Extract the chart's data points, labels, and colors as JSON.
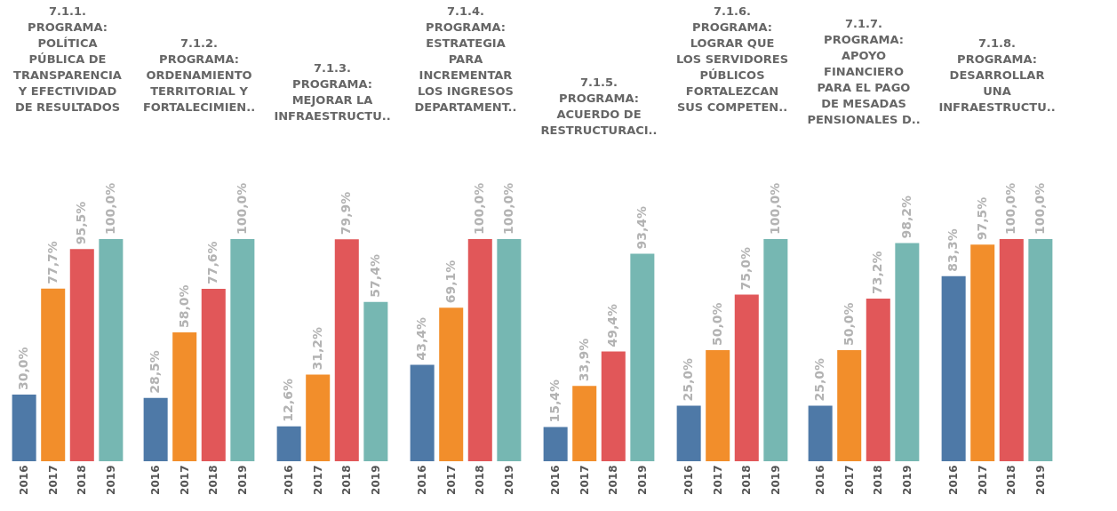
{
  "chart_data": [
    {
      "type": "bar",
      "title": "7.1.1.\nPROGRAMA:\nPOLÍTICA\nPÚBLICA DE\nTRANSPARENCIA\nY EFECTIVIDAD\nDE RESULTADOS",
      "categories": [
        "2016",
        "2017",
        "2018",
        "2019"
      ],
      "values": [
        30.0,
        77.7,
        95.5,
        100.0
      ],
      "value_labels": [
        "30,0%",
        "77,7%",
        "95,5%",
        "100,0%"
      ],
      "colors": [
        "#4e79a7",
        "#f28e2b",
        "#e15759",
        "#76b7b2"
      ],
      "tick_labels": "x",
      "grid": false
    },
    {
      "type": "bar",
      "title": "7.1.2.\nPROGRAMA:\nORDENAMIENTO\nTERRITORIAL Y\nFORTALECIMIEN..",
      "categories": [
        "2016",
        "2017",
        "2018",
        "2019"
      ],
      "values": [
        28.5,
        58.0,
        77.6,
        100.0
      ],
      "value_labels": [
        "28,5%",
        "58,0%",
        "77,6%",
        "100,0%"
      ],
      "colors": [
        "#4e79a7",
        "#f28e2b",
        "#e15759",
        "#76b7b2"
      ],
      "tick_labels": "x",
      "grid": false
    },
    {
      "type": "bar",
      "title": "7.1.3.\nPROGRAMA:\nMEJORAR LA\nINFRAESTRUCTU..",
      "categories": [
        "2016",
        "2017",
        "2018",
        "2019"
      ],
      "values": [
        12.6,
        31.2,
        79.9,
        57.4
      ],
      "value_labels": [
        "12,6%",
        "31,2%",
        "79,9%",
        "57,4%"
      ],
      "colors": [
        "#4e79a7",
        "#f28e2b",
        "#e15759",
        "#76b7b2"
      ],
      "tick_labels": "x",
      "grid": false
    },
    {
      "type": "bar",
      "title": "7.1.4.\nPROGRAMA:\nESTRATEGIA\nPARA\nINCREMENTAR\nLOS INGRESOS\nDEPARTAMENT..",
      "categories": [
        "2016",
        "2017",
        "2018",
        "2019"
      ],
      "values": [
        43.4,
        69.1,
        100.0,
        100.0
      ],
      "value_labels": [
        "43,4%",
        "69,1%",
        "100,0%",
        "100,0%"
      ],
      "colors": [
        "#4e79a7",
        "#f28e2b",
        "#e15759",
        "#76b7b2"
      ],
      "tick_labels": "x",
      "grid": false
    },
    {
      "type": "bar",
      "title": "7.1.5.\nPROGRAMA:\nACUERDO DE\nRESTRUCTURACI..",
      "categories": [
        "2016",
        "2017",
        "2018",
        "2019"
      ],
      "values": [
        15.4,
        33.9,
        49.4,
        93.4
      ],
      "value_labels": [
        "15,4%",
        "33,9%",
        "49,4%",
        "93,4%"
      ],
      "colors": [
        "#4e79a7",
        "#f28e2b",
        "#e15759",
        "#76b7b2"
      ],
      "tick_labels": "x",
      "grid": false
    },
    {
      "type": "bar",
      "title": "7.1.6.\nPROGRAMA:\nLOGRAR QUE\nLOS SERVIDORES\nPÚBLICOS\nFORTALEZCAN\nSUS COMPETEN..",
      "categories": [
        "2016",
        "2017",
        "2018",
        "2019"
      ],
      "values": [
        25.0,
        50.0,
        75.0,
        100.0
      ],
      "value_labels": [
        "25,0%",
        "50,0%",
        "75,0%",
        "100,0%"
      ],
      "colors": [
        "#4e79a7",
        "#f28e2b",
        "#e15759",
        "#76b7b2"
      ],
      "tick_labels": "x",
      "grid": false
    },
    {
      "type": "bar",
      "title": "7.1.7.\nPROGRAMA:\nAPOYO\nFINANCIERO\nPARA EL PAGO\nDE MESADAS\nPENSIONALES D..",
      "categories": [
        "2016",
        "2017",
        "2018",
        "2019"
      ],
      "values": [
        25.0,
        50.0,
        73.2,
        98.2
      ],
      "value_labels": [
        "25,0%",
        "50,0%",
        "73,2%",
        "98,2%"
      ],
      "colors": [
        "#4e79a7",
        "#f28e2b",
        "#e15759",
        "#76b7b2"
      ],
      "tick_labels": "x",
      "grid": false
    },
    {
      "type": "bar",
      "title": "7.1.8.\nPROGRAMA:\nDESARROLLAR\nUNA\nINFRAESTRUCTU..",
      "categories": [
        "2016",
        "2017",
        "2018",
        "2019"
      ],
      "values": [
        83.3,
        97.5,
        100.0,
        100.0
      ],
      "value_labels": [
        "83,3%",
        "97,5%",
        "100,0%",
        "100,0%"
      ],
      "colors": [
        "#4e79a7",
        "#f28e2b",
        "#e15759",
        "#76b7b2"
      ],
      "tick_labels": "x",
      "grid": false
    }
  ]
}
